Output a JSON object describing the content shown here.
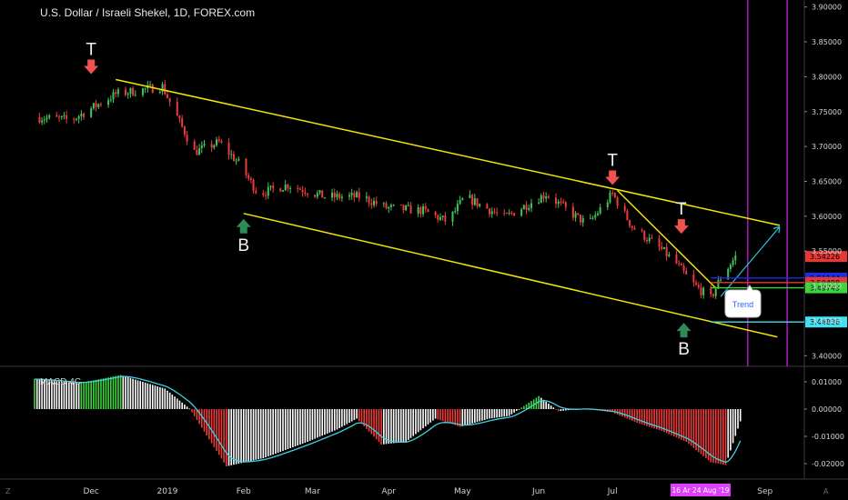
{
  "chart_data": {
    "type": "candlestick",
    "title": "U.S. Dollar / Israeli Shekel, 1D, FOREX.com",
    "x_ticks": [
      "Dec",
      "2019",
      "Feb",
      "Mar",
      "Apr",
      "May",
      "Jun",
      "Jul",
      "Aug",
      "Sep"
    ],
    "x_tick_days": [
      0,
      31,
      62,
      90,
      121,
      151,
      182,
      212,
      243,
      274
    ],
    "x_range_days": [
      -23,
      290
    ],
    "price_axis": {
      "range": [
        3.39,
        3.91
      ],
      "ticks": [
        "3.90000",
        "3.85000",
        "3.80000",
        "3.75000",
        "3.70000",
        "3.65000",
        "3.60000",
        "3.55000",
        "3.50000",
        "3.45000",
        "3.40000"
      ]
    },
    "price_path": [
      [
        -23,
        3.742
      ],
      [
        -8,
        3.738
      ],
      [
        10,
        3.775
      ],
      [
        22,
        3.782
      ],
      [
        29,
        3.786
      ],
      [
        35,
        3.742
      ],
      [
        42,
        3.692
      ],
      [
        52,
        3.706
      ],
      [
        60,
        3.676
      ],
      [
        68,
        3.632
      ],
      [
        80,
        3.645
      ],
      [
        95,
        3.628
      ],
      [
        110,
        3.628
      ],
      [
        120,
        3.612
      ],
      [
        135,
        3.608
      ],
      [
        145,
        3.592
      ],
      [
        152,
        3.628
      ],
      [
        168,
        3.598
      ],
      [
        175,
        3.612
      ],
      [
        185,
        3.632
      ],
      [
        195,
        3.605
      ],
      [
        202,
        3.588
      ],
      [
        212,
        3.632
      ],
      [
        220,
        3.585
      ],
      [
        232,
        3.552
      ],
      [
        238,
        3.532
      ],
      [
        244,
        3.505
      ],
      [
        252,
        3.482
      ],
      [
        256,
        3.512
      ],
      [
        262,
        3.542
      ]
    ],
    "channel_lines": [
      {
        "from": [
          10,
          3.796
        ],
        "to": [
          280,
          3.587
        ],
        "color": "#f2e500"
      },
      {
        "from": [
          62,
          3.604
        ],
        "to": [
          279,
          3.427
        ],
        "color": "#f2e500"
      },
      {
        "from": [
          214,
          3.637
        ],
        "to": [
          254,
          3.497
        ],
        "color": "#f2e500"
      }
    ],
    "projection_arrow": {
      "from": [
        256,
        3.485
      ],
      "to": [
        280,
        3.585
      ],
      "color": "#26c6da"
    },
    "markers": [
      {
        "type": "top",
        "label": "T",
        "day": 0,
        "price": 3.796
      },
      {
        "type": "bottom",
        "label": "B",
        "day": 62,
        "price": 3.604
      },
      {
        "type": "top",
        "label": "T",
        "day": 212,
        "price": 3.637
      },
      {
        "type": "top",
        "label": "T",
        "day": 240,
        "price": 3.567
      },
      {
        "type": "bottom",
        "label": "B",
        "day": 241,
        "price": 3.455
      }
    ],
    "horizontal_levels": [
      {
        "price": 3.51144,
        "label": "3.51144",
        "color": "#1c2de8"
      },
      {
        "price": 3.50498,
        "label": "3.50498",
        "color": "#e53935"
      },
      {
        "price": 3.49743,
        "label": "3.49743",
        "color": "#3ad63a"
      },
      {
        "price": 3.44836,
        "label": "3.44836",
        "color": "#3fe1f2"
      }
    ],
    "current_price": {
      "price": 3.54226,
      "label": "3.54226",
      "color": "#e53935"
    },
    "vertical_lines_days": [
      267,
      283
    ],
    "trend_callout": "Trend",
    "date_range_label": "16 Ar  24 Aug '19",
    "macd": {
      "name": "MACD 4C",
      "range": [
        -0.024,
        0.014
      ],
      "ticks": [
        "0.01000",
        "0.00000",
        "-0.01000",
        "-0.02000"
      ],
      "tick_values": [
        0.01,
        0,
        -0.01,
        -0.02
      ],
      "hist_path": [
        [
          -23,
          0.011
        ],
        [
          -5,
          0.0095
        ],
        [
          12,
          0.0125
        ],
        [
          30,
          0.0075
        ],
        [
          40,
          0.0002
        ],
        [
          55,
          -0.021
        ],
        [
          70,
          -0.018
        ],
        [
          88,
          -0.012
        ],
        [
          100,
          -0.0075
        ],
        [
          108,
          -0.0035
        ],
        [
          118,
          -0.013
        ],
        [
          128,
          -0.012
        ],
        [
          140,
          -0.0035
        ],
        [
          150,
          -0.0065
        ],
        [
          162,
          -0.0035
        ],
        [
          170,
          -0.0025
        ],
        [
          182,
          0.0048
        ],
        [
          190,
          -0.0008
        ],
        [
          200,
          0.0002
        ],
        [
          212,
          -0.0012
        ],
        [
          222,
          -0.005
        ],
        [
          232,
          -0.008
        ],
        [
          242,
          -0.012
        ],
        [
          252,
          -0.0195
        ],
        [
          258,
          -0.0205
        ],
        [
          264,
          -0.0045
        ]
      ]
    }
  },
  "footer": {
    "left_label": "Z",
    "right_label": "A"
  }
}
